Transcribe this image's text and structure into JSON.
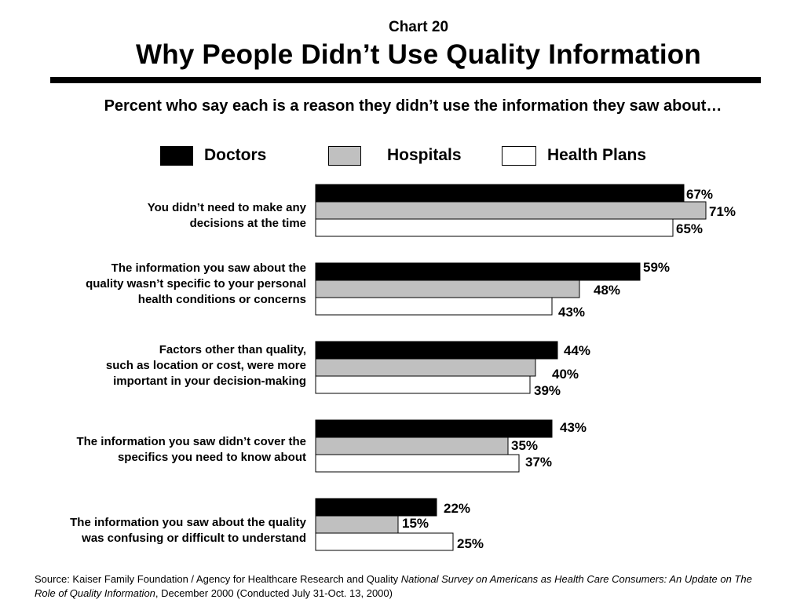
{
  "header": {
    "chart_number": "Chart 20",
    "title": "Why People Didn’t Use Quality Information",
    "subtitle": "Percent who say each is a reason they didn’t use the information they saw about…"
  },
  "colors": {
    "Doctors": "#000000",
    "Hospitals": "#c0c0c0",
    "Health Plans": "#ffffff",
    "bar_outline": "#000000"
  },
  "chart_data": {
    "type": "bar",
    "orientation": "horizontal",
    "title": "Why People Didn’t Use Quality Information",
    "subtitle": "Percent who say each is a reason they didn’t use the information they saw about…",
    "legend_position": "top",
    "xlim": [
      0,
      100
    ],
    "grid": false,
    "categories": [
      [
        "You didn’t need to make any",
        "decisions at the time"
      ],
      [
        "The information you saw about the",
        "quality wasn’t specific to your personal",
        "health conditions or concerns"
      ],
      [
        "Factors other than quality,",
        "such as location or cost, were more",
        "important in your decision-making"
      ],
      [
        "The information you saw didn’t cover the",
        "specifics you need to know about"
      ],
      [
        "The information you saw about the quality",
        "was confusing or difficult to understand"
      ]
    ],
    "series": [
      {
        "name": "Doctors",
        "values": [
          67,
          59,
          44,
          43,
          22
        ],
        "labels": [
          "67%",
          "59%",
          "44%",
          "43%",
          "22%"
        ]
      },
      {
        "name": "Hospitals",
        "values": [
          71,
          48,
          40,
          35,
          15
        ],
        "labels": [
          "71%",
          "48%",
          "40%",
          "35%",
          "15%"
        ]
      },
      {
        "name": "Health Plans",
        "values": [
          65,
          43,
          39,
          37,
          25
        ],
        "labels": [
          "65%",
          "43%",
          "39%",
          "37%",
          "25%"
        ]
      }
    ]
  },
  "footer": {
    "source_prefix": "Source: Kaiser Family Foundation / Agency for Healthcare Research and Quality ",
    "source_title": "National Survey on Americans as Health Care Consumers:  An Update on The Role of Quality Information",
    "source_suffix": ", December 2000 (Conducted July 31-Oct. 13, 2000)"
  }
}
